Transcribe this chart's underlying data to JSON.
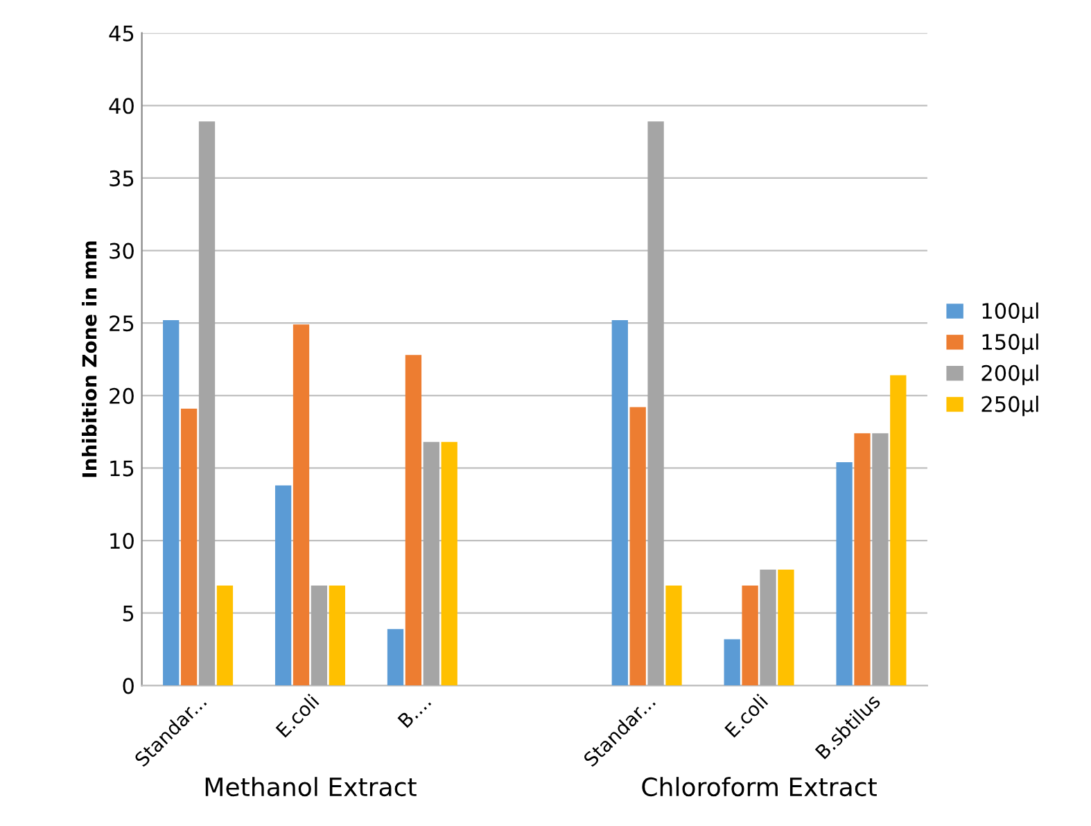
{
  "chart_data": {
    "type": "bar",
    "ylabel": "Inhibition Zone in mm",
    "categories": [
      "Standar...",
      "E.coli",
      "B....",
      null,
      "Standar...",
      "E.coli",
      "B.sbtilus"
    ],
    "series": [
      {
        "name": "100µl",
        "color": "#5b9bd5",
        "values": [
          25.2,
          13.8,
          3.9,
          null,
          25.2,
          3.2,
          15.4
        ]
      },
      {
        "name": "150µl",
        "color": "#ed7d31",
        "values": [
          19.1,
          24.9,
          22.8,
          null,
          19.2,
          6.9,
          17.4
        ]
      },
      {
        "name": "200µl",
        "color": "#a5a5a5",
        "values": [
          38.9,
          6.9,
          16.8,
          null,
          38.9,
          8.0,
          17.4
        ]
      },
      {
        "name": "250µl",
        "color": "#ffc000",
        "values": [
          6.9,
          6.9,
          16.8,
          null,
          6.9,
          8.0,
          21.4
        ]
      }
    ],
    "ylim": [
      0,
      45
    ],
    "yticks": [
      0,
      5,
      10,
      15,
      20,
      25,
      30,
      35,
      40,
      45
    ],
    "grid": "y",
    "legend": "right",
    "annotations": [
      "Methanol Extract",
      "Chloroform Extract"
    ]
  }
}
